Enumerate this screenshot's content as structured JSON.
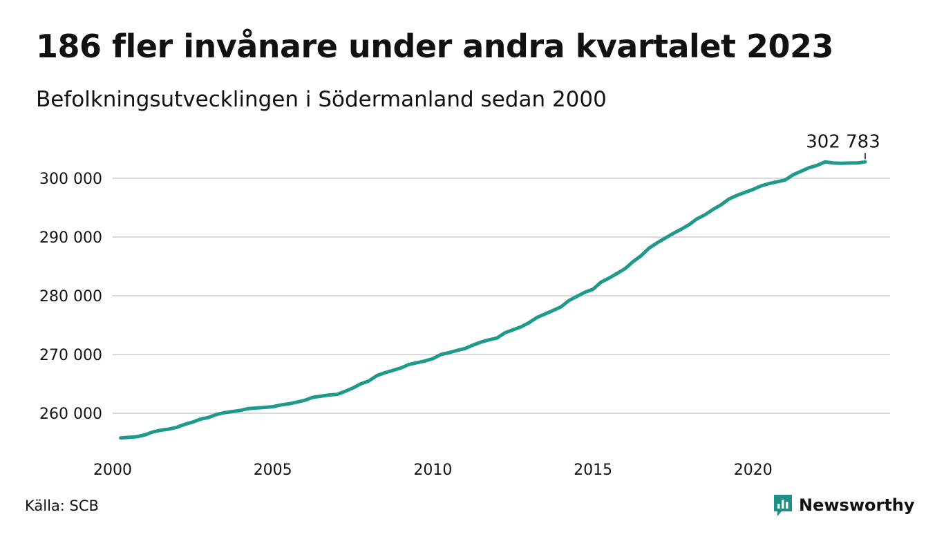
{
  "title": "186 fler invånare under andra kvartalet 2023",
  "subtitle": "Befolkningsutvecklingen i Södermanland sedan 2000",
  "source": "Källa: SCB",
  "brand": {
    "name": "Newsworthy",
    "color": "#1f8f85"
  },
  "colors": {
    "line": "#1f9a8a",
    "grid": "#d9d9d9",
    "text": "#111111"
  },
  "last_value_label": "302 783",
  "chart_data": {
    "type": "line",
    "x_unit": "year",
    "xlim": [
      2000,
      2023.75
    ],
    "ylim": [
      255000,
      305000
    ],
    "y_ticks": [
      260000,
      270000,
      280000,
      290000,
      300000
    ],
    "y_tick_labels": [
      "260 000",
      "270 000",
      "280 000",
      "290 000",
      "300 000"
    ],
    "x_ticks": [
      2000,
      2005,
      2010,
      2015,
      2020
    ],
    "x_tick_labels": [
      "2000",
      "2005",
      "2010",
      "2015",
      "2020"
    ],
    "grid": "horizontal",
    "series": [
      {
        "values": [
          [
            2000.25,
            255800
          ],
          [
            2000.5,
            255900
          ],
          [
            2000.75,
            256000
          ],
          [
            2001.0,
            256300
          ],
          [
            2001.25,
            256800
          ],
          [
            2001.5,
            257100
          ],
          [
            2001.75,
            257300
          ],
          [
            2002.0,
            257600
          ],
          [
            2002.25,
            258100
          ],
          [
            2002.5,
            258500
          ],
          [
            2002.75,
            259000
          ],
          [
            2003.0,
            259300
          ],
          [
            2003.25,
            259800
          ],
          [
            2003.5,
            260100
          ],
          [
            2003.75,
            260300
          ],
          [
            2004.0,
            260500
          ],
          [
            2004.25,
            260800
          ],
          [
            2004.5,
            260900
          ],
          [
            2004.75,
            261000
          ],
          [
            2005.0,
            261100
          ],
          [
            2005.25,
            261400
          ],
          [
            2005.5,
            261600
          ],
          [
            2005.75,
            261900
          ],
          [
            2006.0,
            262200
          ],
          [
            2006.25,
            262700
          ],
          [
            2006.5,
            262900
          ],
          [
            2006.75,
            263100
          ],
          [
            2007.0,
            263200
          ],
          [
            2007.25,
            263700
          ],
          [
            2007.5,
            264300
          ],
          [
            2007.75,
            265000
          ],
          [
            2008.0,
            265500
          ],
          [
            2008.25,
            266400
          ],
          [
            2008.5,
            266900
          ],
          [
            2008.75,
            267300
          ],
          [
            2009.0,
            267700
          ],
          [
            2009.25,
            268300
          ],
          [
            2009.5,
            268600
          ],
          [
            2009.75,
            268900
          ],
          [
            2010.0,
            269300
          ],
          [
            2010.25,
            270000
          ],
          [
            2010.5,
            270300
          ],
          [
            2010.75,
            270700
          ],
          [
            2011.0,
            271000
          ],
          [
            2011.25,
            271600
          ],
          [
            2011.5,
            272100
          ],
          [
            2011.75,
            272500
          ],
          [
            2012.0,
            272800
          ],
          [
            2012.25,
            273700
          ],
          [
            2012.5,
            274200
          ],
          [
            2012.75,
            274700
          ],
          [
            2013.0,
            275400
          ],
          [
            2013.25,
            276300
          ],
          [
            2013.5,
            276900
          ],
          [
            2013.75,
            277500
          ],
          [
            2014.0,
            278100
          ],
          [
            2014.25,
            279200
          ],
          [
            2014.5,
            279900
          ],
          [
            2014.75,
            280600
          ],
          [
            2015.0,
            281100
          ],
          [
            2015.25,
            282300
          ],
          [
            2015.5,
            283000
          ],
          [
            2015.75,
            283800
          ],
          [
            2016.0,
            284600
          ],
          [
            2016.25,
            285800
          ],
          [
            2016.5,
            286800
          ],
          [
            2016.75,
            288100
          ],
          [
            2017.0,
            289000
          ],
          [
            2017.25,
            289800
          ],
          [
            2017.5,
            290600
          ],
          [
            2017.75,
            291300
          ],
          [
            2018.0,
            292100
          ],
          [
            2018.25,
            293100
          ],
          [
            2018.5,
            293800
          ],
          [
            2018.75,
            294700
          ],
          [
            2019.0,
            295500
          ],
          [
            2019.25,
            296500
          ],
          [
            2019.5,
            297100
          ],
          [
            2019.75,
            297600
          ],
          [
            2020.0,
            298100
          ],
          [
            2020.25,
            298700
          ],
          [
            2020.5,
            299100
          ],
          [
            2020.75,
            299400
          ],
          [
            2021.0,
            299700
          ],
          [
            2021.25,
            300600
          ],
          [
            2021.5,
            301200
          ],
          [
            2021.75,
            301800
          ],
          [
            2022.0,
            302200
          ],
          [
            2022.25,
            302800
          ],
          [
            2022.5,
            302600
          ],
          [
            2022.75,
            302550
          ],
          [
            2023.0,
            302600
          ],
          [
            2023.25,
            302597
          ],
          [
            2023.5,
            302783
          ]
        ]
      }
    ]
  }
}
